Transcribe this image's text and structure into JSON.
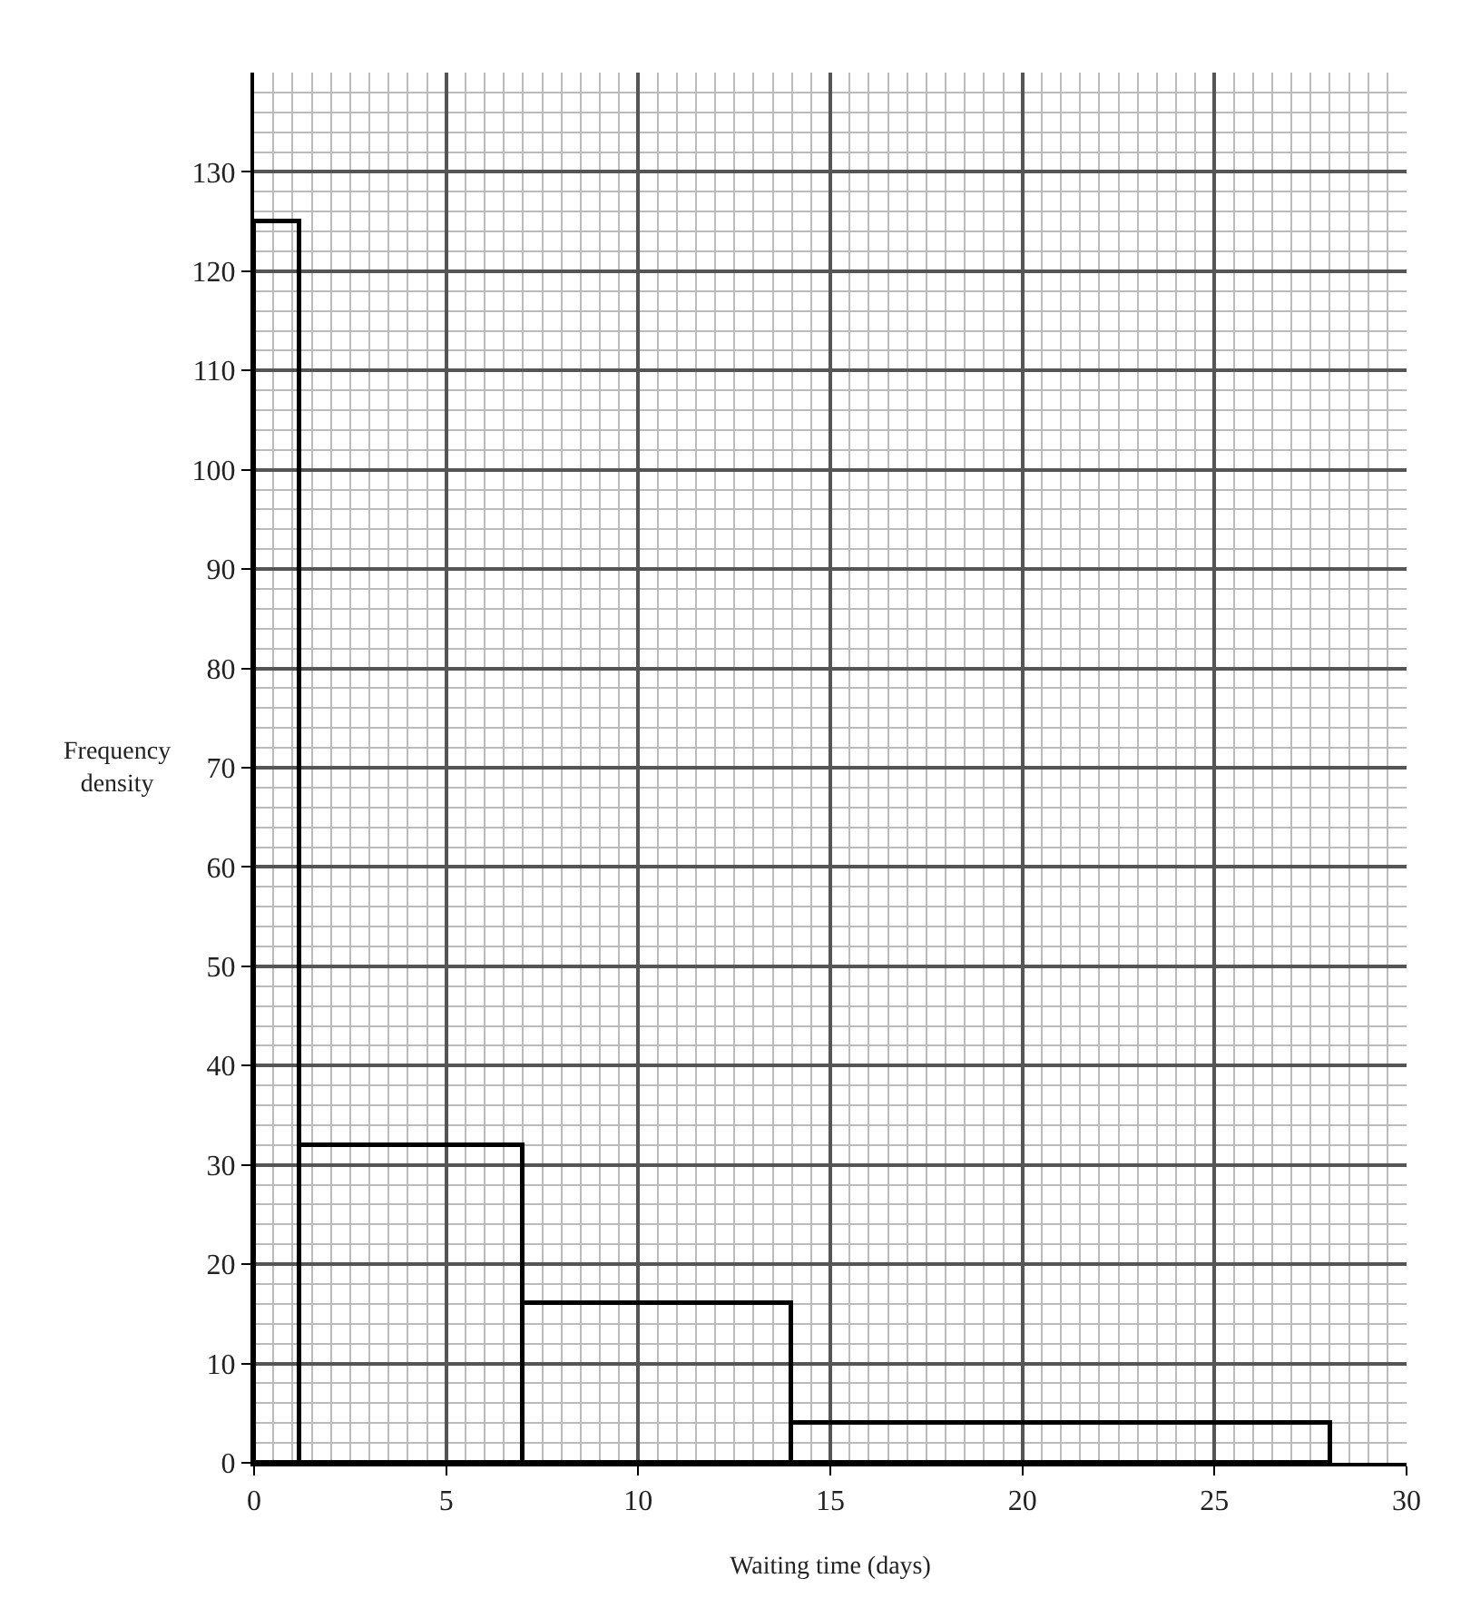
{
  "chart_data": {
    "type": "histogram",
    "xlabel": "Waiting time (days)",
    "ylabel": "Frequency density",
    "bins": [
      0,
      1.2,
      7,
      14,
      28
    ],
    "values": [
      125,
      32,
      16,
      4
    ],
    "color": "#000000",
    "xlim": [
      0,
      30
    ],
    "xticks": [
      0,
      5,
      10,
      15,
      20,
      25,
      30
    ],
    "ylim": [
      0,
      140
    ],
    "yticks": [
      0,
      10,
      20,
      30,
      40,
      50,
      60,
      70,
      80,
      90,
      100,
      110,
      120,
      130
    ],
    "grid": true
  }
}
